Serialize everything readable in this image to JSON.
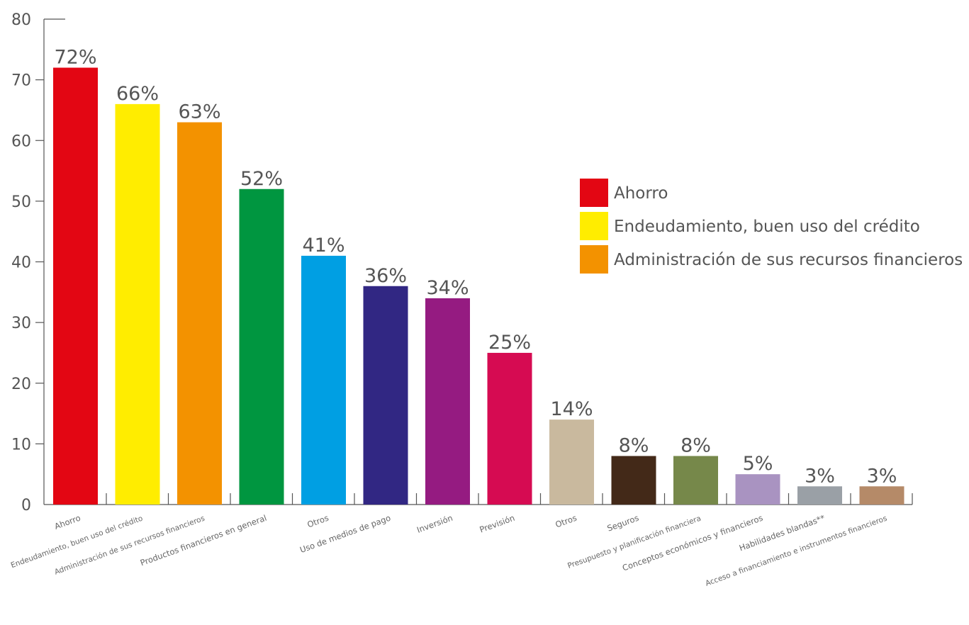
{
  "chart_data": {
    "type": "bar",
    "title": "",
    "xlabel": "",
    "ylabel": "",
    "ylim": [
      0,
      80
    ],
    "y_ticks": [
      "0",
      "10",
      "20",
      "30",
      "40",
      "50",
      "60",
      "70",
      "80"
    ],
    "grid": false,
    "legend_placement": "right",
    "categories": [
      "Ahorro",
      "Endeudamiento, buen uso del crédito",
      "Administración de sus recursos financieros",
      "Productos financieros en general",
      "Otros",
      "Uso de medios de pago",
      "Inversión",
      "Previsión",
      "Otros",
      "Seguros",
      "Presupuesto y planificación financiera",
      "Conceptos económicos y financieros",
      "Habilidades blandas**",
      "Acceso a financiamiento e instrumentos financieros"
    ],
    "values": [
      72,
      66,
      63,
      52,
      41,
      36,
      34,
      25,
      14,
      8,
      8,
      5,
      3,
      3
    ],
    "value_labels": [
      "72%",
      "66%",
      "63%",
      "52%",
      "41%",
      "36%",
      "34%",
      "25%",
      "14%",
      "8%",
      "8%",
      "5%",
      "3%",
      "3%"
    ],
    "colors": [
      "#e30613",
      "#ffed00",
      "#f39200",
      "#009640",
      "#009fe3",
      "#312783",
      "#951b81",
      "#d60b52",
      "#c9b99e",
      "#432918",
      "#76884a",
      "#a993c1",
      "#9aa0a6",
      "#b58a68"
    ],
    "legend": [
      {
        "label": "Ahorro",
        "color": "#e30613"
      },
      {
        "label": "Endeudamiento, buen uso del crédito",
        "color": "#ffed00"
      },
      {
        "label": "Administración de sus recursos financieros",
        "color": "#f39200"
      }
    ]
  }
}
